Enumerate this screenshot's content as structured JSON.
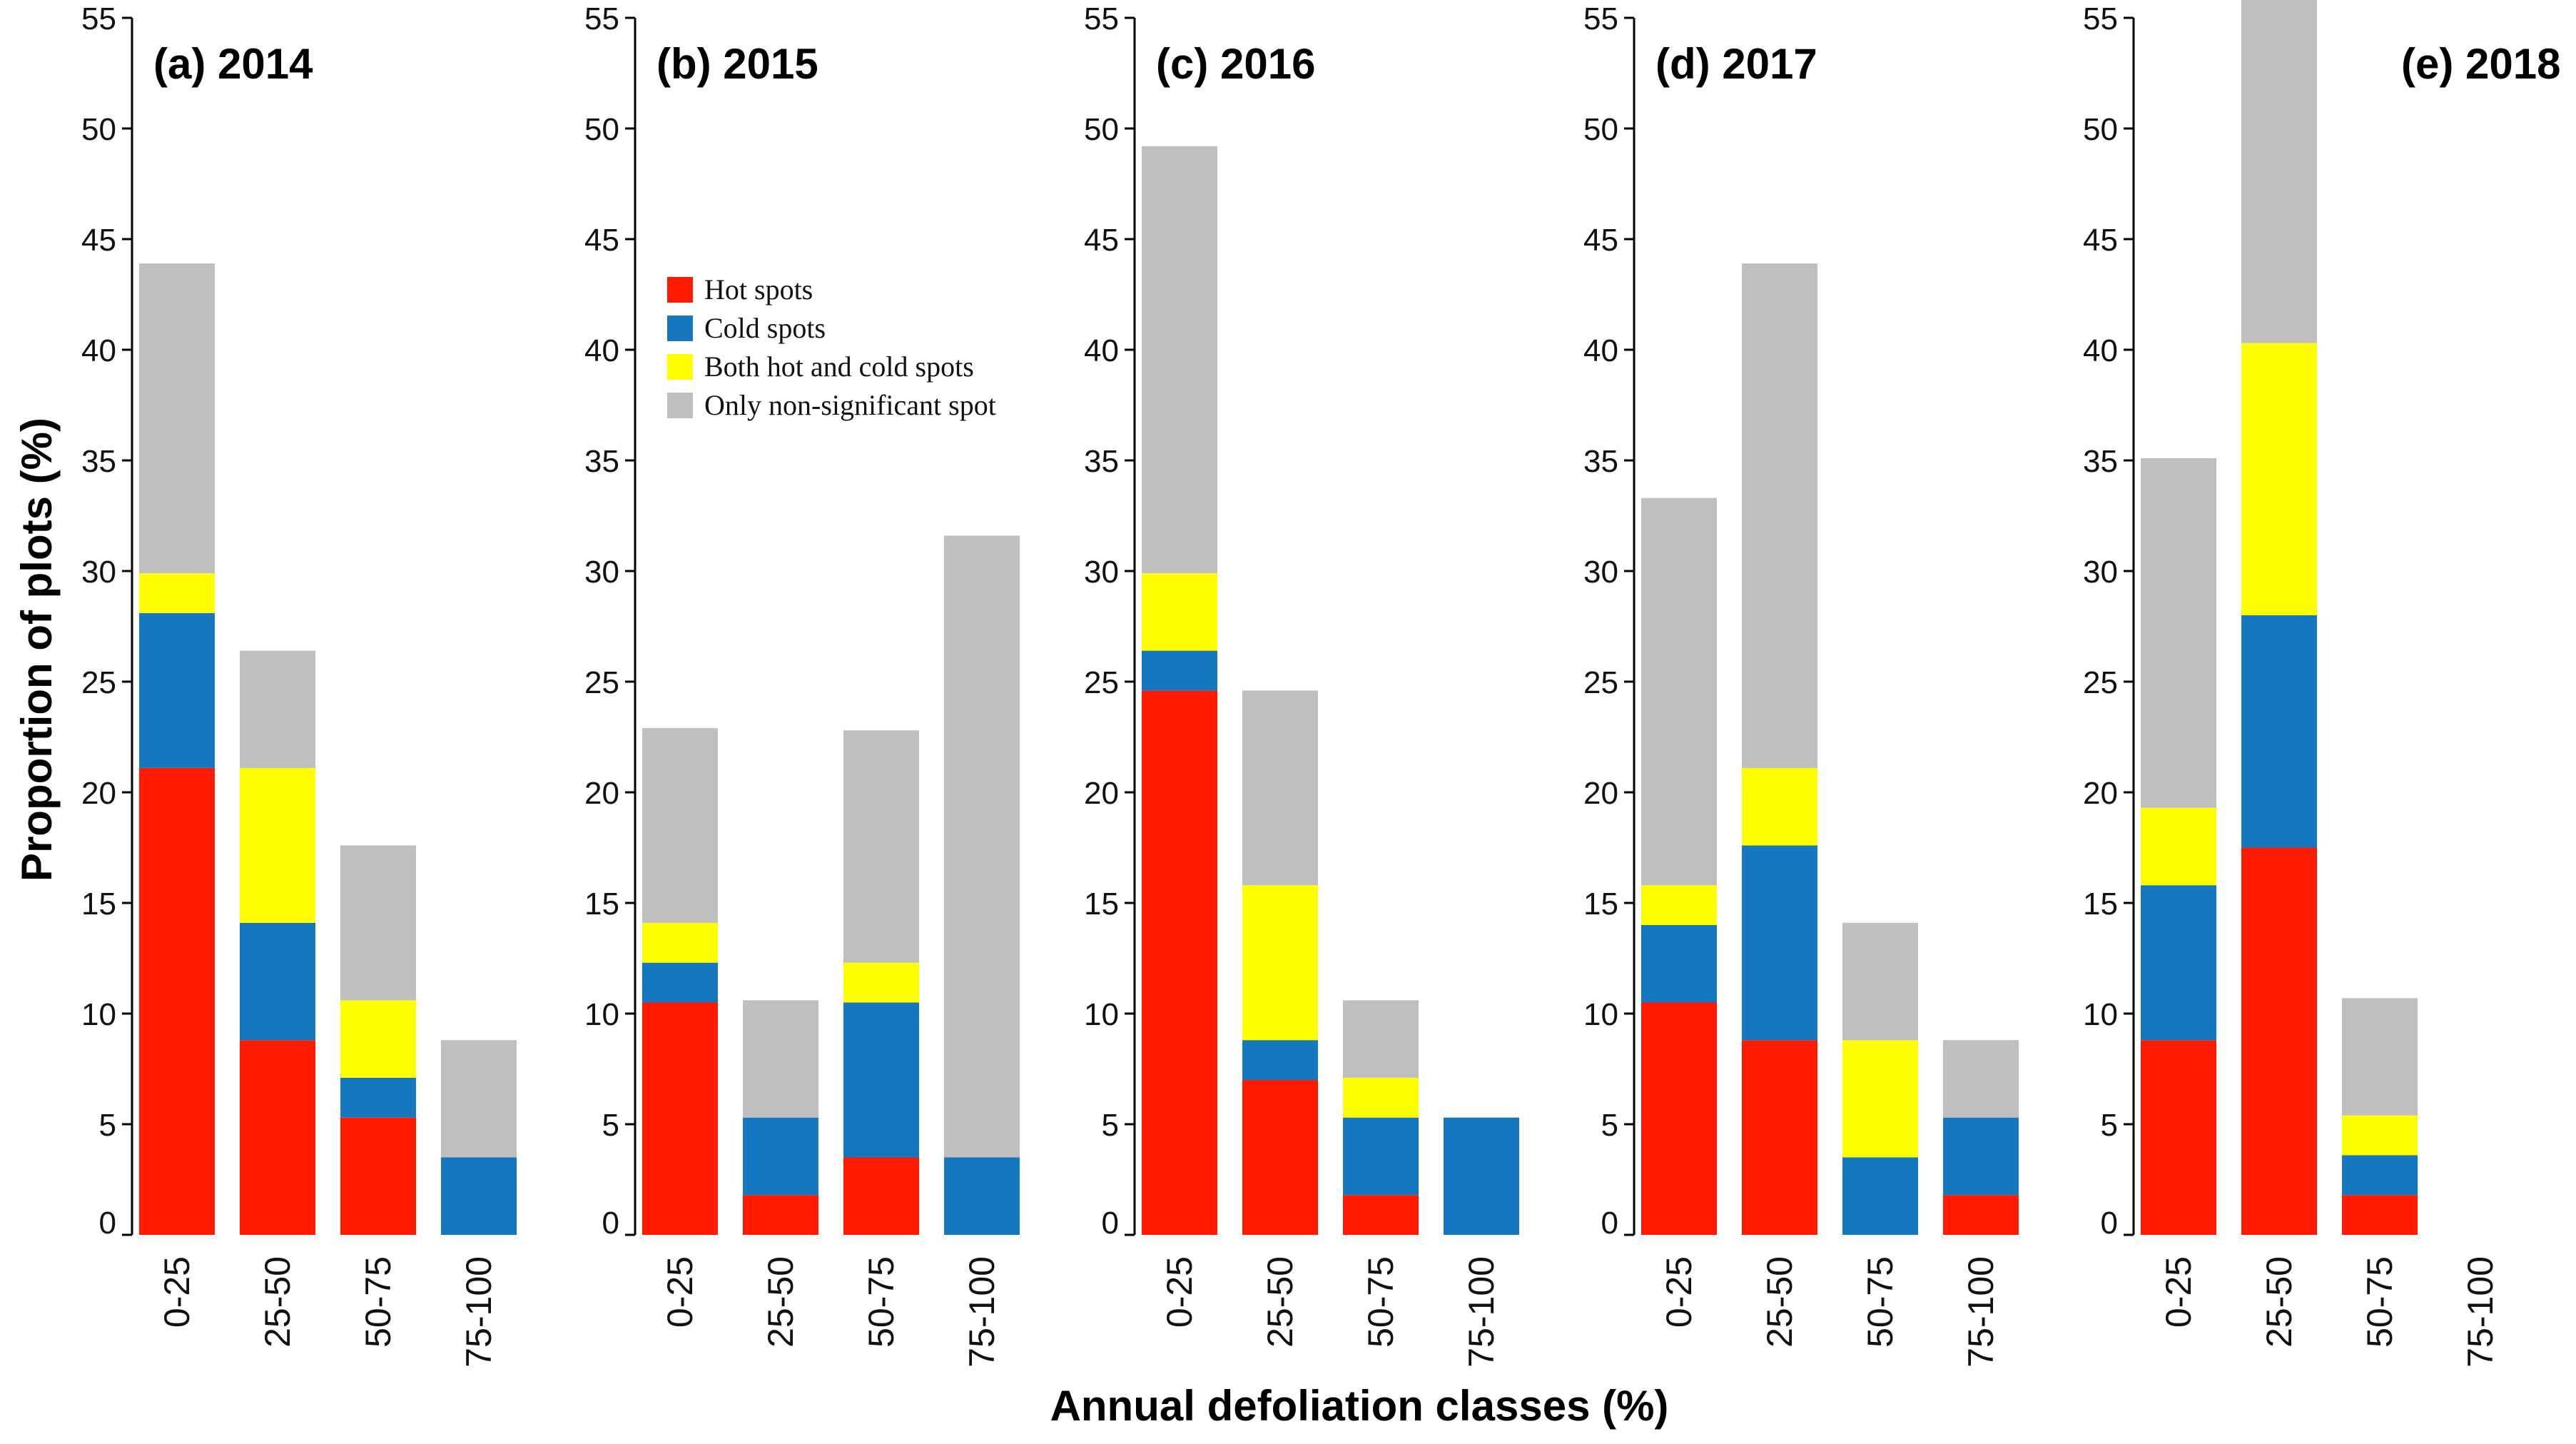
{
  "figure": {
    "ylabel": "Proportion of plots (%)",
    "xlabel": "Annual defoliation classes (%)"
  },
  "legend": [
    {
      "name": "Hot spots",
      "color": "#ff1a00"
    },
    {
      "name": "Cold spots",
      "color": "#1577bd"
    },
    {
      "name": "Both hot and cold spots",
      "color": "#ffff00"
    },
    {
      "name": "Only non-significant spot",
      "color": "#bfbfbf"
    }
  ],
  "chart_data": [
    {
      "type": "bar",
      "stacked": true,
      "title": "(a) 2014",
      "categories": [
        "0-25",
        "25-50",
        "50-75",
        "75-100"
      ],
      "ylim": [
        0,
        55
      ],
      "yticks": [
        0,
        5,
        10,
        15,
        20,
        25,
        30,
        35,
        40,
        45,
        50,
        55
      ],
      "series": [
        {
          "name": "Hot spots",
          "values": [
            21.1,
            8.8,
            5.3,
            0
          ]
        },
        {
          "name": "Cold spots",
          "values": [
            7.0,
            5.3,
            1.8,
            3.5
          ]
        },
        {
          "name": "Both hot and cold spots",
          "values": [
            1.8,
            7.0,
            3.5,
            0
          ]
        },
        {
          "name": "Only non-significant spot",
          "values": [
            14.0,
            5.3,
            7.0,
            5.3
          ]
        }
      ]
    },
    {
      "type": "bar",
      "stacked": true,
      "title": "(b) 2015",
      "categories": [
        "0-25",
        "25-50",
        "50-75",
        "75-100"
      ],
      "ylim": [
        0,
        55
      ],
      "yticks": [
        0,
        5,
        10,
        15,
        20,
        25,
        30,
        35,
        40,
        45,
        50,
        55
      ],
      "series": [
        {
          "name": "Hot spots",
          "values": [
            10.5,
            1.8,
            3.5,
            0
          ]
        },
        {
          "name": "Cold spots",
          "values": [
            1.8,
            3.5,
            7.0,
            3.5
          ]
        },
        {
          "name": "Both hot and cold spots",
          "values": [
            1.8,
            0,
            1.8,
            0
          ]
        },
        {
          "name": "Only non-significant spot",
          "values": [
            8.8,
            5.3,
            10.5,
            28.1
          ]
        }
      ]
    },
    {
      "type": "bar",
      "stacked": true,
      "title": "(c) 2016",
      "categories": [
        "0-25",
        "25-50",
        "50-75",
        "75-100"
      ],
      "ylim": [
        0,
        55
      ],
      "yticks": [
        0,
        5,
        10,
        15,
        20,
        25,
        30,
        35,
        40,
        45,
        50,
        55
      ],
      "series": [
        {
          "name": "Hot spots",
          "values": [
            24.6,
            7.0,
            1.8,
            0
          ]
        },
        {
          "name": "Cold spots",
          "values": [
            1.8,
            1.8,
            3.5,
            5.3
          ]
        },
        {
          "name": "Both hot and cold spots",
          "values": [
            3.5,
            7.0,
            1.8,
            0
          ]
        },
        {
          "name": "Only non-significant spot",
          "values": [
            19.3,
            8.8,
            3.5,
            0
          ]
        }
      ]
    },
    {
      "type": "bar",
      "stacked": true,
      "title": "(d) 2017",
      "categories": [
        "0-25",
        "25-50",
        "50-75",
        "75-100"
      ],
      "ylim": [
        0,
        55
      ],
      "yticks": [
        0,
        5,
        10,
        15,
        20,
        25,
        30,
        35,
        40,
        45,
        50,
        55
      ],
      "series": [
        {
          "name": "Hot spots",
          "values": [
            10.5,
            8.8,
            0,
            1.8
          ]
        },
        {
          "name": "Cold spots",
          "values": [
            3.5,
            8.8,
            3.5,
            3.5
          ]
        },
        {
          "name": "Both hot and cold spots",
          "values": [
            1.8,
            3.5,
            5.3,
            0
          ]
        },
        {
          "name": "Only non-significant spot",
          "values": [
            17.5,
            22.8,
            5.3,
            3.5
          ]
        }
      ]
    },
    {
      "type": "bar",
      "stacked": true,
      "title": "(e) 2018",
      "categories": [
        "0-25",
        "25-50",
        "50-75",
        "75-100"
      ],
      "ylim": [
        0,
        55
      ],
      "yticks": [
        0,
        5,
        10,
        15,
        20,
        25,
        30,
        35,
        40,
        45,
        50,
        55
      ],
      "series": [
        {
          "name": "Hot spots",
          "values": [
            8.8,
            17.5,
            1.8,
            0
          ]
        },
        {
          "name": "Cold spots",
          "values": [
            7.0,
            10.5,
            1.8,
            0
          ]
        },
        {
          "name": "Both hot and cold spots",
          "values": [
            3.5,
            12.3,
            1.8,
            0
          ]
        },
        {
          "name": "Only non-significant spot",
          "values": [
            15.8,
            15.8,
            5.3,
            0
          ]
        }
      ]
    }
  ]
}
